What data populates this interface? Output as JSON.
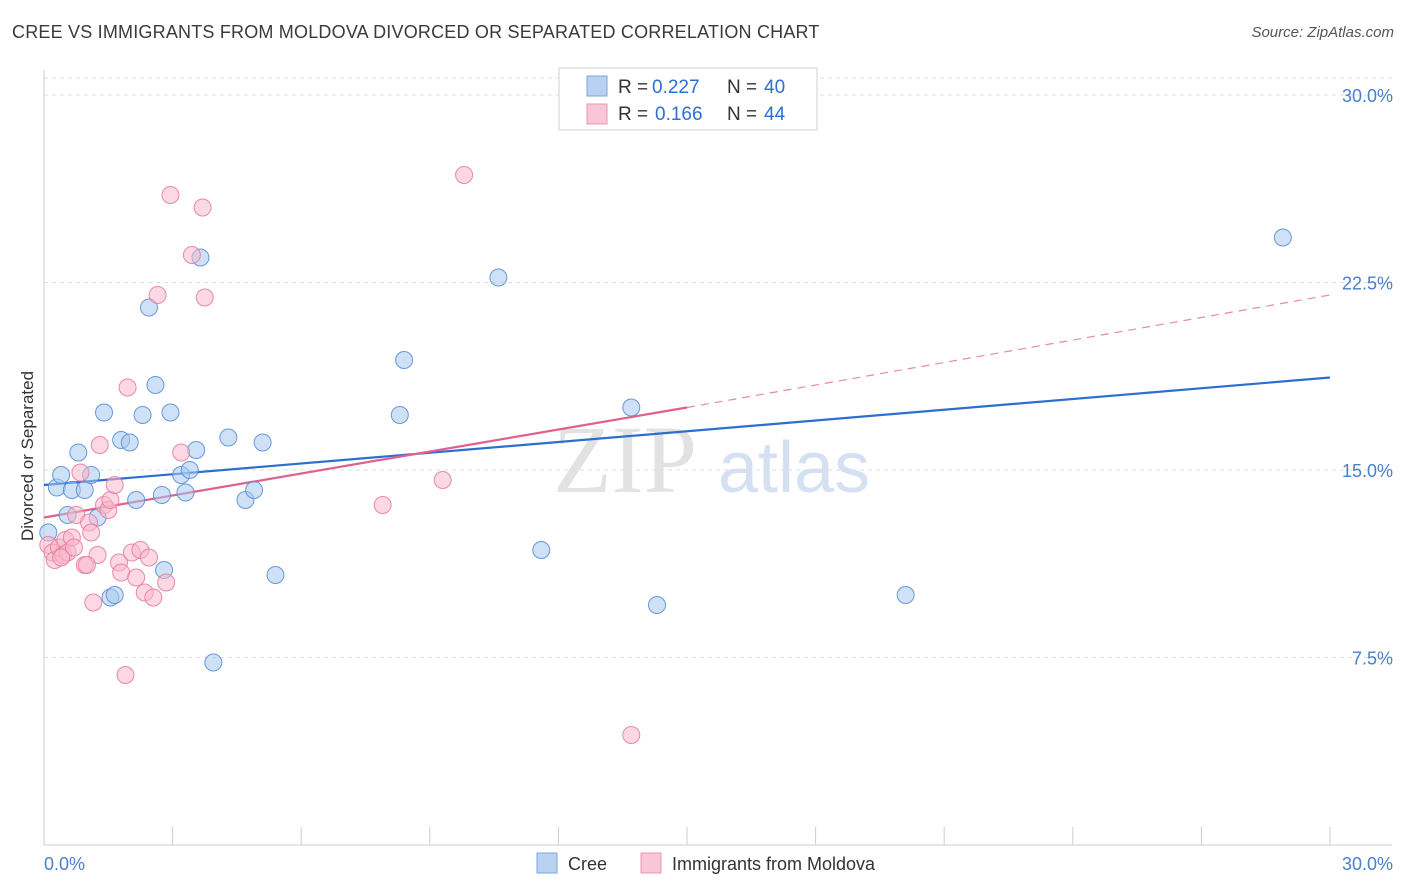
{
  "header": {
    "title": "CREE VS IMMIGRANTS FROM MOLDOVA DIVORCED OR SEPARATED CORRELATION CHART",
    "source": "Source: ZipAtlas.com"
  },
  "watermark": {
    "zip": "ZIP",
    "atlas": "atlas"
  },
  "legend": {
    "r_label": "R =",
    "n_label": "N =",
    "rows": [
      {
        "r": "0.227",
        "n": "40"
      },
      {
        "r": "0.166",
        "n": "44"
      }
    ]
  },
  "colors": {
    "cree_fill": "#a8c8f0",
    "cree_stroke": "#5b8fd6",
    "cree_line": "#2c6fcf",
    "moldova_fill": "#f7b8cc",
    "moldova_stroke": "#e77ea0",
    "moldova_line": "#e0608e",
    "grid": "#dddddd",
    "tick_label": "#4a7fc9"
  },
  "chart_data": {
    "type": "scatter",
    "title": "CREE VS IMMIGRANTS FROM MOLDOVA DIVORCED OR SEPARATED CORRELATION CHART",
    "xlabel": "",
    "ylabel": "Divorced or Separated",
    "xlim": [
      0,
      30
    ],
    "ylim": [
      0,
      31
    ],
    "x_tick_labels": [
      "0.0%",
      "30.0%"
    ],
    "y_ticks": [
      7.5,
      15.0,
      22.5,
      30.0
    ],
    "y_tick_labels": [
      "7.5%",
      "15.0%",
      "22.5%",
      "30.0%"
    ],
    "grid": "horizontal dashed",
    "legend_placement": "top-center",
    "series": [
      {
        "name": "Cree",
        "r": 0.227,
        "n": 40,
        "trend": {
          "x": [
            0,
            30
          ],
          "y": [
            14.4,
            18.7
          ]
        },
        "points": [
          [
            0.1,
            12.5
          ],
          [
            0.3,
            14.3
          ],
          [
            0.4,
            14.8
          ],
          [
            0.55,
            13.2
          ],
          [
            0.65,
            14.2
          ],
          [
            0.8,
            15.7
          ],
          [
            0.95,
            14.2
          ],
          [
            1.1,
            14.8
          ],
          [
            1.25,
            13.1
          ],
          [
            1.4,
            17.3
          ],
          [
            1.55,
            9.9
          ],
          [
            1.65,
            10.0
          ],
          [
            1.8,
            16.2
          ],
          [
            2.0,
            16.1
          ],
          [
            2.15,
            13.8
          ],
          [
            2.3,
            17.2
          ],
          [
            2.45,
            21.5
          ],
          [
            2.6,
            18.4
          ],
          [
            2.75,
            14.0
          ],
          [
            2.8,
            11.0
          ],
          [
            2.95,
            17.3
          ],
          [
            3.2,
            14.8
          ],
          [
            3.3,
            14.1
          ],
          [
            3.4,
            15.0
          ],
          [
            3.55,
            15.8
          ],
          [
            3.65,
            23.5
          ],
          [
            3.95,
            7.3
          ],
          [
            4.3,
            16.3
          ],
          [
            4.7,
            13.8
          ],
          [
            4.9,
            14.2
          ],
          [
            5.1,
            16.1
          ],
          [
            5.4,
            10.8
          ],
          [
            8.3,
            17.2
          ],
          [
            8.4,
            19.4
          ],
          [
            10.6,
            22.7
          ],
          [
            11.6,
            11.8
          ],
          [
            13.7,
            17.5
          ],
          [
            14.3,
            9.6
          ],
          [
            20.1,
            10.0
          ],
          [
            28.9,
            24.3
          ]
        ]
      },
      {
        "name": "Immigrants from Moldova",
        "r": 0.166,
        "n": 44,
        "trend": {
          "x": [
            0,
            15
          ],
          "y": [
            13.1,
            17.5
          ]
        },
        "trend_dashed": {
          "x": [
            15,
            30
          ],
          "y": [
            17.5,
            22.0
          ]
        },
        "points": [
          [
            0.1,
            12.0
          ],
          [
            0.2,
            11.7
          ],
          [
            0.25,
            11.4
          ],
          [
            0.35,
            11.9
          ],
          [
            0.45,
            11.6
          ],
          [
            0.5,
            12.2
          ],
          [
            0.55,
            11.7
          ],
          [
            0.65,
            12.3
          ],
          [
            0.75,
            13.2
          ],
          [
            0.85,
            14.9
          ],
          [
            0.95,
            11.2
          ],
          [
            1.05,
            12.9
          ],
          [
            1.1,
            12.5
          ],
          [
            1.15,
            9.7
          ],
          [
            1.25,
            11.6
          ],
          [
            1.3,
            16.0
          ],
          [
            1.4,
            13.6
          ],
          [
            1.5,
            13.4
          ],
          [
            1.55,
            13.8
          ],
          [
            1.65,
            14.4
          ],
          [
            1.75,
            11.3
          ],
          [
            1.8,
            10.9
          ],
          [
            1.9,
            6.8
          ],
          [
            1.95,
            18.3
          ],
          [
            2.05,
            11.7
          ],
          [
            2.15,
            10.7
          ],
          [
            2.25,
            11.8
          ],
          [
            2.35,
            10.1
          ],
          [
            2.45,
            11.5
          ],
          [
            2.55,
            9.9
          ],
          [
            2.65,
            22.0
          ],
          [
            2.85,
            10.5
          ],
          [
            2.95,
            26.0
          ],
          [
            3.2,
            15.7
          ],
          [
            3.45,
            23.6
          ],
          [
            3.7,
            25.5
          ],
          [
            3.75,
            21.9
          ],
          [
            7.9,
            13.6
          ],
          [
            9.3,
            14.6
          ],
          [
            9.8,
            26.8
          ],
          [
            13.7,
            4.4
          ],
          [
            0.4,
            11.5
          ],
          [
            0.7,
            11.9
          ],
          [
            1.0,
            11.2
          ]
        ]
      }
    ]
  },
  "bottom_legend": {
    "items": [
      {
        "label": "Cree"
      },
      {
        "label": "Immigrants from Moldova"
      }
    ]
  }
}
